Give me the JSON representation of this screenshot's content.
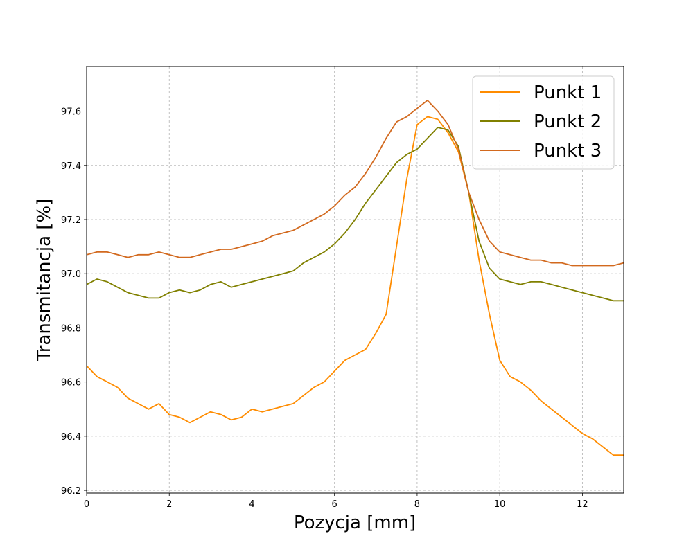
{
  "chart_data": {
    "type": "line",
    "xlabel": "Pozycja [mm]",
    "ylabel": "Transmitancja [%]",
    "xlim": [
      0,
      13
    ],
    "ylim": [
      96.19,
      97.765
    ],
    "xticks": [
      0,
      2,
      4,
      6,
      8,
      10,
      12
    ],
    "xtick_labels": [
      "0",
      "2",
      "4",
      "6",
      "8",
      "10",
      "12"
    ],
    "yticks": [
      96.2,
      96.4,
      96.6,
      96.8,
      97.0,
      97.2,
      97.4,
      97.6
    ],
    "ytick_labels": [
      "96.2",
      "96.4",
      "96.6",
      "96.8",
      "97.0",
      "97.2",
      "97.4",
      "97.6"
    ],
    "grid": true,
    "legend_position": "top-right",
    "series": [
      {
        "name": "Punkt 1",
        "color": "#ff8c00",
        "x": [
          0,
          0.25,
          0.5,
          0.75,
          1.0,
          1.25,
          1.5,
          1.75,
          2.0,
          2.25,
          2.5,
          2.75,
          3.0,
          3.25,
          3.5,
          3.75,
          4.0,
          4.25,
          4.5,
          4.75,
          5.0,
          5.25,
          5.5,
          5.75,
          6.0,
          6.25,
          6.5,
          6.75,
          7.0,
          7.25,
          7.5,
          7.75,
          8.0,
          8.25,
          8.5,
          8.75,
          9.0,
          9.25,
          9.5,
          9.75,
          10.0,
          10.25,
          10.5,
          10.75,
          11.0,
          11.25,
          11.5,
          11.75,
          12.0,
          12.25,
          12.5,
          12.75,
          13.0
        ],
        "y": [
          96.66,
          96.62,
          96.6,
          96.58,
          96.54,
          96.52,
          96.5,
          96.52,
          96.48,
          96.47,
          96.45,
          96.47,
          96.49,
          96.48,
          96.46,
          96.47,
          96.5,
          96.49,
          96.5,
          96.51,
          96.52,
          96.55,
          96.58,
          96.6,
          96.64,
          96.68,
          96.7,
          96.72,
          96.78,
          96.85,
          97.1,
          97.35,
          97.55,
          97.58,
          97.57,
          97.52,
          97.45,
          97.3,
          97.05,
          96.85,
          96.68,
          96.62,
          96.6,
          96.57,
          96.53,
          96.5,
          96.47,
          96.44,
          96.41,
          96.39,
          96.36,
          96.33,
          96.33
        ]
      },
      {
        "name": "Punkt 2",
        "color": "#808000",
        "x": [
          0,
          0.25,
          0.5,
          0.75,
          1.0,
          1.25,
          1.5,
          1.75,
          2.0,
          2.25,
          2.5,
          2.75,
          3.0,
          3.25,
          3.5,
          3.75,
          4.0,
          4.25,
          4.5,
          4.75,
          5.0,
          5.25,
          5.5,
          5.75,
          6.0,
          6.25,
          6.5,
          6.75,
          7.0,
          7.25,
          7.5,
          7.75,
          8.0,
          8.25,
          8.5,
          8.75,
          9.0,
          9.25,
          9.5,
          9.75,
          10.0,
          10.25,
          10.5,
          10.75,
          11.0,
          11.25,
          11.5,
          11.75,
          12.0,
          12.25,
          12.5,
          12.75,
          13.0
        ],
        "y": [
          96.96,
          96.98,
          96.97,
          96.95,
          96.93,
          96.92,
          96.91,
          96.91,
          96.93,
          96.94,
          96.93,
          96.94,
          96.96,
          96.97,
          96.95,
          96.96,
          96.97,
          96.98,
          96.99,
          97.0,
          97.01,
          97.04,
          97.06,
          97.08,
          97.11,
          97.15,
          97.2,
          97.26,
          97.31,
          97.36,
          97.41,
          97.44,
          97.46,
          97.5,
          97.54,
          97.53,
          97.47,
          97.3,
          97.12,
          97.02,
          96.98,
          96.97,
          96.96,
          96.97,
          96.97,
          96.96,
          96.95,
          96.94,
          96.93,
          96.92,
          96.91,
          96.9,
          96.9
        ]
      },
      {
        "name": "Punkt 3",
        "color": "#d2691e",
        "x": [
          0,
          0.25,
          0.5,
          0.75,
          1.0,
          1.25,
          1.5,
          1.75,
          2.0,
          2.25,
          2.5,
          2.75,
          3.0,
          3.25,
          3.5,
          3.75,
          4.0,
          4.25,
          4.5,
          4.75,
          5.0,
          5.25,
          5.5,
          5.75,
          6.0,
          6.25,
          6.5,
          6.75,
          7.0,
          7.25,
          7.5,
          7.75,
          8.0,
          8.25,
          8.5,
          8.75,
          9.0,
          9.25,
          9.5,
          9.75,
          10.0,
          10.25,
          10.5,
          10.75,
          11.0,
          11.25,
          11.5,
          11.75,
          12.0,
          12.25,
          12.5,
          12.75,
          13.0
        ],
        "y": [
          97.07,
          97.08,
          97.08,
          97.07,
          97.06,
          97.07,
          97.07,
          97.08,
          97.07,
          97.06,
          97.06,
          97.07,
          97.08,
          97.09,
          97.09,
          97.1,
          97.11,
          97.12,
          97.14,
          97.15,
          97.16,
          97.18,
          97.2,
          97.22,
          97.25,
          97.29,
          97.32,
          97.37,
          97.43,
          97.5,
          97.56,
          97.58,
          97.61,
          97.64,
          97.6,
          97.55,
          97.46,
          97.3,
          97.2,
          97.12,
          97.08,
          97.07,
          97.06,
          97.05,
          97.05,
          97.04,
          97.04,
          97.03,
          97.03,
          97.03,
          97.03,
          97.03,
          97.04
        ]
      }
    ]
  }
}
